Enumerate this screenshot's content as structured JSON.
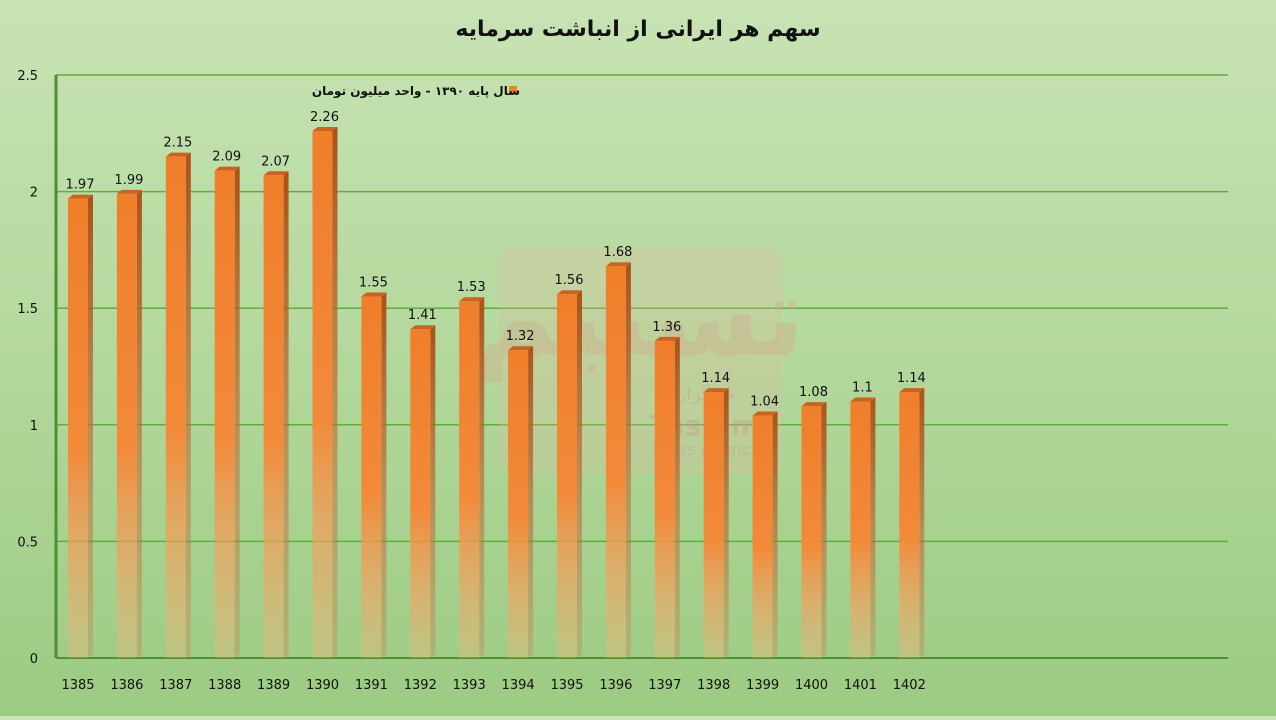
{
  "chart_data": {
    "type": "bar",
    "title": "سهم هر ایرانی از انباشت سرمایه",
    "legend": "سال پایه ۱۳۹۰ - واحد میلیون تومان",
    "legend_position": "top",
    "xlabel": "",
    "ylabel": "",
    "ylim": [
      0,
      2.5
    ],
    "yticks": [
      "0",
      "0.5",
      "1",
      "1.5",
      "2",
      "2.5"
    ],
    "categories": [
      "1385",
      "1386",
      "1387",
      "1388",
      "1389",
      "1390",
      "1391",
      "1392",
      "1393",
      "1394",
      "1395",
      "1396",
      "1397",
      "1398",
      "1399",
      "1400",
      "1401",
      "1402"
    ],
    "values": [
      1.97,
      1.99,
      2.15,
      2.09,
      2.07,
      2.26,
      1.55,
      1.41,
      1.53,
      1.32,
      1.56,
      1.68,
      1.36,
      1.14,
      1.04,
      1.08,
      1.1,
      1.14
    ],
    "value_labels": [
      "1.97",
      "1.99",
      "2.15",
      "2.09",
      "2.07",
      "2.26",
      "1.55",
      "1.41",
      "1.53",
      "1.32",
      "1.56",
      "1.68",
      "1.36",
      "1.14",
      "1.04",
      "1.08",
      "1.1",
      "1.14"
    ],
    "grid": true,
    "colors": {
      "bar": "#f07e2a",
      "bar_side": "#b55816",
      "grid": "#5fae3c",
      "text": "#111111"
    }
  },
  "watermark": {
    "logo_text": "تسنیم",
    "subtitle_fa": "خبرگزاری",
    "brand": "Tasnim",
    "tagline": "News Agency"
  }
}
